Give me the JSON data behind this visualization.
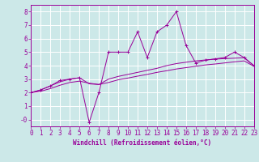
{
  "background_color": "#cce8e8",
  "grid_color": "#ffffff",
  "line_color": "#990099",
  "x_min": 0,
  "x_max": 23,
  "y_min": -0.5,
  "y_max": 8.5,
  "xlabel": "Windchill (Refroidissement éolien,°C)",
  "xlabel_fontsize": 5.5,
  "tick_fontsize": 5.5,
  "yticks": [
    0,
    1,
    2,
    3,
    4,
    5,
    6,
    7,
    8
  ],
  "ytick_labels": [
    "-0",
    "1",
    "2",
    "3",
    "4",
    "5",
    "6",
    "7",
    "8"
  ],
  "xticks": [
    0,
    1,
    2,
    3,
    4,
    5,
    6,
    7,
    8,
    9,
    10,
    11,
    12,
    13,
    14,
    15,
    16,
    17,
    18,
    19,
    20,
    21,
    22,
    23
  ],
  "series1_x": [
    0,
    1,
    2,
    3,
    4,
    5,
    6,
    7,
    8,
    9,
    10,
    11,
    12,
    13,
    14,
    15,
    16,
    17,
    18,
    19,
    20,
    21,
    22,
    23
  ],
  "series1_y": [
    2.0,
    2.2,
    2.5,
    2.9,
    3.0,
    3.1,
    -0.2,
    2.0,
    5.0,
    5.0,
    5.0,
    6.5,
    4.6,
    6.5,
    7.0,
    8.0,
    5.5,
    4.2,
    4.4,
    4.5,
    4.6,
    5.0,
    4.6,
    4.0
  ],
  "series2_x": [
    0,
    1,
    2,
    3,
    4,
    5,
    6,
    7,
    8,
    9,
    10,
    11,
    12,
    13,
    14,
    15,
    16,
    17,
    18,
    19,
    20,
    21,
    22,
    23
  ],
  "series2_y": [
    2.0,
    2.2,
    2.5,
    2.8,
    3.0,
    3.1,
    2.65,
    2.6,
    3.0,
    3.2,
    3.35,
    3.5,
    3.65,
    3.8,
    4.0,
    4.15,
    4.25,
    4.35,
    4.42,
    4.48,
    4.52,
    4.55,
    4.58,
    4.0
  ],
  "series3_x": [
    0,
    1,
    2,
    3,
    4,
    5,
    6,
    7,
    8,
    9,
    10,
    11,
    12,
    13,
    14,
    15,
    16,
    17,
    18,
    19,
    20,
    21,
    22,
    23
  ],
  "series3_y": [
    2.0,
    2.1,
    2.3,
    2.55,
    2.75,
    2.85,
    2.7,
    2.6,
    2.75,
    2.95,
    3.08,
    3.22,
    3.35,
    3.5,
    3.62,
    3.75,
    3.85,
    3.95,
    4.05,
    4.12,
    4.2,
    4.28,
    4.35,
    3.95
  ]
}
